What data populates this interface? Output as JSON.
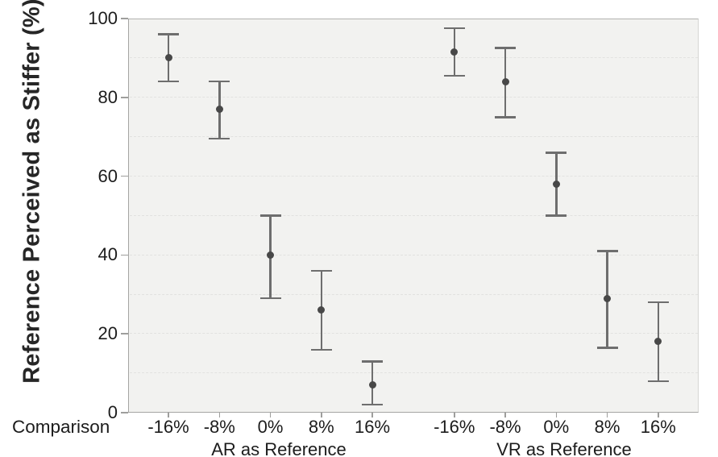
{
  "chart_data": {
    "type": "scatter",
    "subtype": "means-with-error-bars",
    "title": "",
    "ylabel": "Reference Perceived as Stiffer (%)",
    "xlabel_left": "Comparison",
    "ylim": [
      0,
      100
    ],
    "yticks": [
      0,
      20,
      40,
      60,
      80,
      100
    ],
    "gridline_values": [
      10,
      20,
      30,
      40,
      50,
      60,
      70,
      80,
      90
    ],
    "grid_style": "dashed",
    "legend": "none",
    "categories": [
      "-16%",
      "-8%",
      "0%",
      "8%",
      "16%"
    ],
    "groups": [
      {
        "label": "AR as Reference",
        "points": [
          {
            "x": "-16%",
            "mean": 90,
            "lo": 84,
            "hi": 96
          },
          {
            "x": "-8%",
            "mean": 77,
            "lo": 69.5,
            "hi": 84
          },
          {
            "x": "0%",
            "mean": 40,
            "lo": 29,
            "hi": 50
          },
          {
            "x": "8%",
            "mean": 26,
            "lo": 16,
            "hi": 36
          },
          {
            "x": "16%",
            "mean": 7,
            "lo": 2,
            "hi": 13
          }
        ]
      },
      {
        "label": "VR as Reference",
        "points": [
          {
            "x": "-16%",
            "mean": 91.5,
            "lo": 85.5,
            "hi": 97.5
          },
          {
            "x": "-8%",
            "mean": 84,
            "lo": 75,
            "hi": 92.5
          },
          {
            "x": "0%",
            "mean": 58,
            "lo": 50,
            "hi": 66
          },
          {
            "x": "8%",
            "mean": 29,
            "lo": 16.5,
            "hi": 41
          },
          {
            "x": "16%",
            "mean": 18,
            "lo": 8,
            "hi": 28
          }
        ]
      }
    ],
    "colors": {
      "marker": "#484848",
      "error_bar": "#6e6e6e",
      "plot_background": "#f2f2f0",
      "gridline": "#e2e2e0",
      "axis_line": "#a5a5a3",
      "tick": "#9e9e9c",
      "text": "#1c1c1c"
    }
  }
}
